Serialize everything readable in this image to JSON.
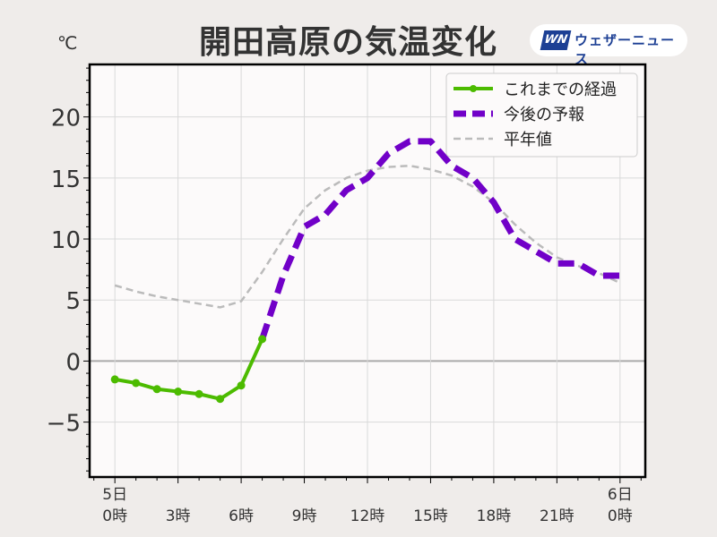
{
  "title": "開田高原の気温変化",
  "unit": "℃",
  "logo": {
    "mark": "WN",
    "text": "ウェザーニュース"
  },
  "colors": {
    "observed": "#4cbb00",
    "forecast": "#7100c8",
    "normal": "#bbbbbb",
    "zero": "#aaaaaa",
    "grid": "#d9d9d9",
    "plot_bg": "#fcfafa"
  },
  "chart_data": {
    "type": "line",
    "title": "開田高原の気温変化",
    "ylabel": "℃",
    "xlabel": "",
    "xlim": [
      -1.2,
      25.2
    ],
    "ylim": [
      -9.5,
      24.3
    ],
    "grid": true,
    "legend_position": "top-right",
    "yticks": [
      -5,
      0,
      5,
      10,
      15,
      20
    ],
    "ytick_labels": [
      "−5",
      "0",
      "5",
      "10",
      "15",
      "20"
    ],
    "xticks": [
      0,
      3,
      6,
      9,
      12,
      15,
      18,
      21,
      24
    ],
    "xtick_labels": [
      [
        "5日",
        "0時"
      ],
      [
        "",
        "3時"
      ],
      [
        "",
        "6時"
      ],
      [
        "",
        "9時"
      ],
      [
        "",
        "12時"
      ],
      [
        "",
        "15時"
      ],
      [
        "",
        "18時"
      ],
      [
        "",
        "21時"
      ],
      [
        "6日",
        "0時"
      ]
    ],
    "series": [
      {
        "name": "これまでの経過",
        "style": "solid-markers",
        "x": [
          0,
          1,
          2,
          3,
          4,
          5,
          6,
          7
        ],
        "values": [
          -1.5,
          -1.8,
          -2.3,
          -2.5,
          -2.7,
          -3.1,
          -2.0,
          1.8
        ]
      },
      {
        "name": "今後の予報",
        "style": "dashed-thick",
        "x": [
          7,
          8,
          9,
          10,
          11,
          12,
          13,
          14,
          15,
          16,
          17,
          18,
          19,
          20,
          21,
          22,
          23,
          24
        ],
        "values": [
          1.8,
          7,
          11,
          12,
          14,
          15,
          17,
          18,
          18,
          16,
          15,
          13,
          10,
          9,
          8,
          8,
          7,
          7
        ]
      },
      {
        "name": "平年値",
        "style": "dashed-thin",
        "x": [
          0,
          1,
          2,
          3,
          4,
          5,
          6,
          7,
          8,
          9,
          10,
          11,
          12,
          13,
          14,
          15,
          16,
          17,
          18,
          19,
          20,
          21,
          22,
          23,
          24
        ],
        "values": [
          6.2,
          5.7,
          5.3,
          5.0,
          4.7,
          4.4,
          4.9,
          7.3,
          10.0,
          12.5,
          14.0,
          15.0,
          15.6,
          15.9,
          16.0,
          15.7,
          15.2,
          14.3,
          13.0,
          11.2,
          9.7,
          8.5,
          7.8,
          7.2,
          6.4
        ]
      }
    ]
  }
}
